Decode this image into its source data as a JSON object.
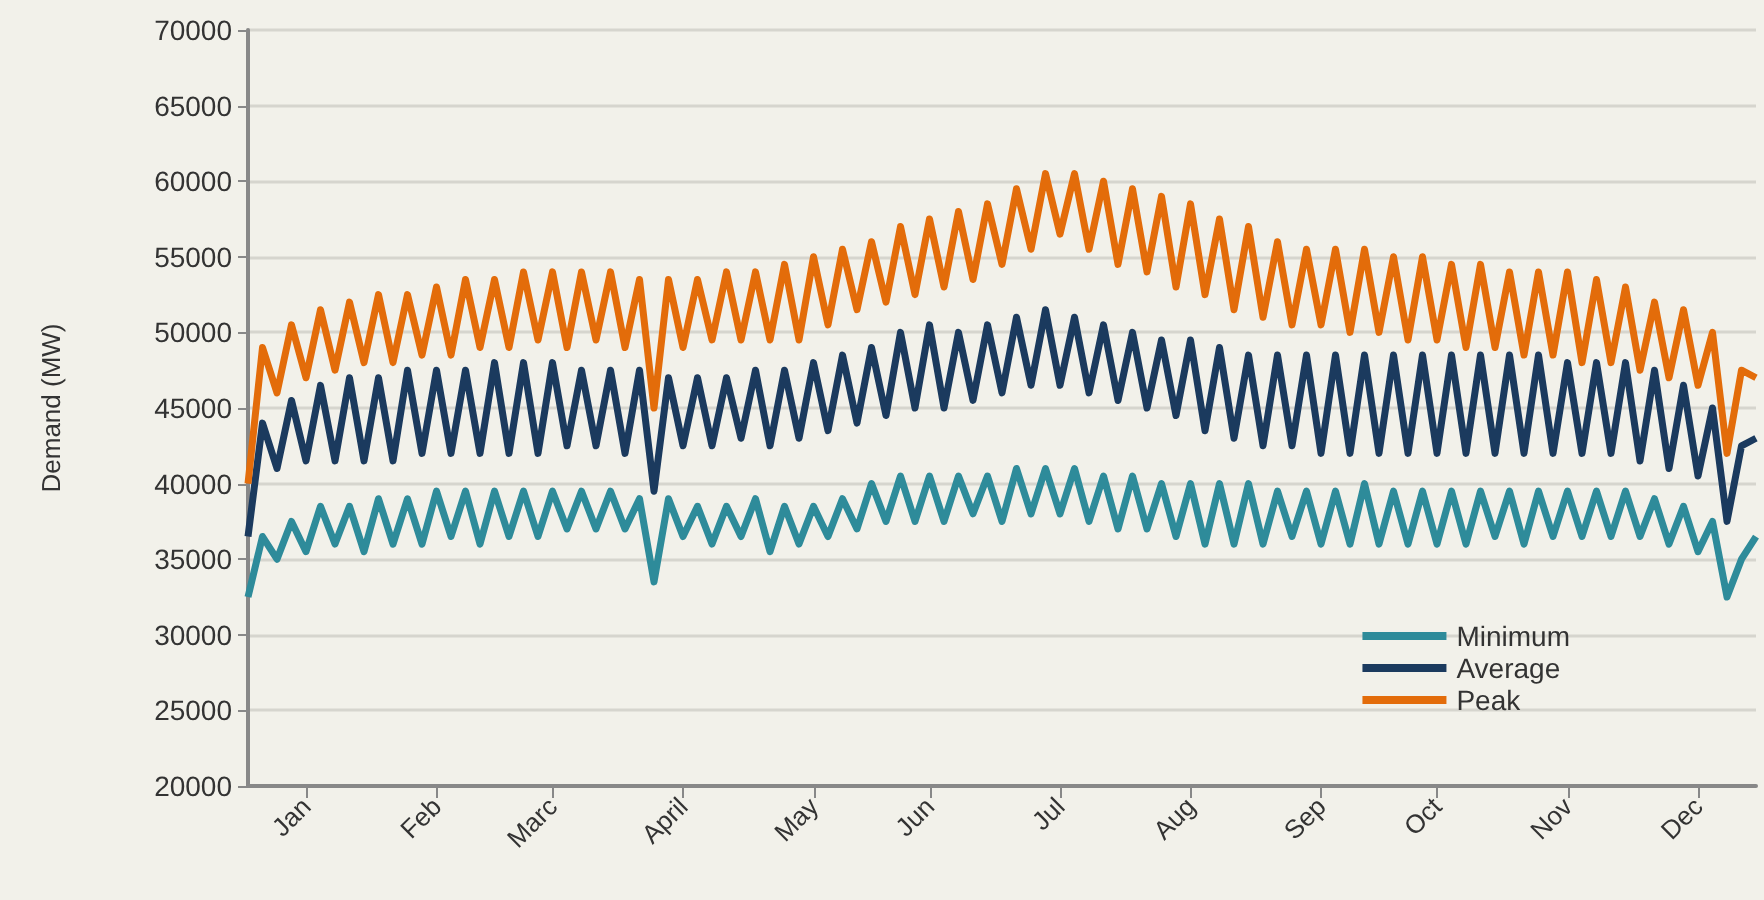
{
  "chart_data": {
    "type": "line",
    "ylabel": "Demand (MW)",
    "categories": [
      null,
      null,
      null,
      null,
      "Jan",
      null,
      null,
      null,
      null,
      null,
      null,
      null,
      null,
      "Feb",
      null,
      null,
      null,
      null,
      null,
      null,
      null,
      "Marc",
      null,
      null,
      null,
      null,
      null,
      null,
      null,
      null,
      "April",
      null,
      null,
      null,
      null,
      null,
      null,
      null,
      null,
      "May",
      null,
      null,
      null,
      null,
      null,
      null,
      null,
      "Jun",
      null,
      null,
      null,
      null,
      null,
      null,
      null,
      null,
      "Jul",
      null,
      null,
      null,
      null,
      null,
      null,
      null,
      null,
      "Aug",
      null,
      null,
      null,
      null,
      null,
      null,
      null,
      null,
      "Sep",
      null,
      null,
      null,
      null,
      null,
      null,
      null,
      "Oct",
      null,
      null,
      null,
      null,
      null,
      null,
      null,
      null,
      "Nov",
      null,
      null,
      null,
      null,
      null,
      null,
      null,
      null,
      "Dec",
      null,
      null,
      null,
      null
    ],
    "ylim": [
      20000,
      70000
    ],
    "yticks": [
      20000,
      25000,
      30000,
      35000,
      40000,
      45000,
      50000,
      55000,
      60000,
      65000,
      70000
    ],
    "grid": "y",
    "legend": "bottom right",
    "series": [
      {
        "name": "Minimum",
        "color": "#2e8b9a",
        "values": [
          32500,
          36500,
          35000,
          37500,
          35500,
          38500,
          36000,
          38500,
          35500,
          39000,
          36000,
          39000,
          36000,
          39500,
          36500,
          39500,
          36000,
          39500,
          36500,
          39500,
          36500,
          39500,
          37000,
          39500,
          37000,
          39500,
          37000,
          39000,
          33500,
          39000,
          36500,
          38500,
          36000,
          38500,
          36500,
          39000,
          35500,
          38500,
          36000,
          38500,
          36500,
          39000,
          37000,
          40000,
          37500,
          40500,
          37500,
          40500,
          37500,
          40500,
          38000,
          40500,
          37500,
          41000,
          38000,
          41000,
          38000,
          41000,
          37500,
          40500,
          37000,
          40500,
          37000,
          40000,
          36500,
          40000,
          36000,
          40000,
          36000,
          40000,
          36000,
          39500,
          36500,
          39500,
          36000,
          39500,
          36000,
          40000,
          36000,
          39500,
          36000,
          39500,
          36000,
          39500,
          36000,
          39500,
          36500,
          39500,
          36000,
          39500,
          36500,
          39500,
          36500,
          39500,
          36500,
          39500,
          36500,
          39000,
          36000,
          38500,
          35500,
          37500,
          32500,
          35000,
          36500
        ]
      },
      {
        "name": "Average",
        "color": "#1b3a5e",
        "values": [
          36500,
          44000,
          41000,
          45500,
          41500,
          46500,
          41500,
          47000,
          41500,
          47000,
          41500,
          47500,
          42000,
          47500,
          42000,
          47500,
          42000,
          48000,
          42000,
          48000,
          42000,
          48000,
          42500,
          47500,
          42500,
          47500,
          42000,
          47500,
          39500,
          47000,
          42500,
          47000,
          42500,
          47000,
          43000,
          47500,
          42500,
          47500,
          43000,
          48000,
          43500,
          48500,
          44000,
          49000,
          44500,
          50000,
          45000,
          50500,
          45000,
          50000,
          45500,
          50500,
          46000,
          51000,
          46500,
          51500,
          46500,
          51000,
          46000,
          50500,
          45500,
          50000,
          45000,
          49500,
          44500,
          49500,
          43500,
          49000,
          43000,
          48500,
          42500,
          48500,
          42500,
          48500,
          42000,
          48500,
          42000,
          48500,
          42000,
          48500,
          42000,
          48500,
          42000,
          48500,
          42000,
          48500,
          42000,
          48500,
          42000,
          48500,
          42000,
          48000,
          42000,
          48000,
          42000,
          48000,
          41500,
          47500,
          41000,
          46500,
          40500,
          45000,
          37500,
          42500,
          43000
        ]
      },
      {
        "name": "Peak",
        "color": "#e36c0a",
        "values": [
          40000,
          49000,
          46000,
          50500,
          47000,
          51500,
          47500,
          52000,
          48000,
          52500,
          48000,
          52500,
          48500,
          53000,
          48500,
          53500,
          49000,
          53500,
          49000,
          54000,
          49500,
          54000,
          49000,
          54000,
          49500,
          54000,
          49000,
          53500,
          45000,
          53500,
          49000,
          53500,
          49500,
          54000,
          49500,
          54000,
          49500,
          54500,
          49500,
          55000,
          50500,
          55500,
          51500,
          56000,
          52000,
          57000,
          52500,
          57500,
          53000,
          58000,
          53500,
          58500,
          54500,
          59500,
          55500,
          60500,
          56500,
          60500,
          55500,
          60000,
          54500,
          59500,
          54000,
          59000,
          53000,
          58500,
          52500,
          57500,
          51500,
          57000,
          51000,
          56000,
          50500,
          55500,
          50500,
          55500,
          50000,
          55500,
          50000,
          55000,
          49500,
          55000,
          49500,
          54500,
          49000,
          54500,
          49000,
          54000,
          48500,
          54000,
          48500,
          54000,
          48000,
          53500,
          48000,
          53000,
          47500,
          52000,
          47000,
          51500,
          46500,
          50000,
          42000,
          47500,
          47000
        ]
      }
    ]
  }
}
